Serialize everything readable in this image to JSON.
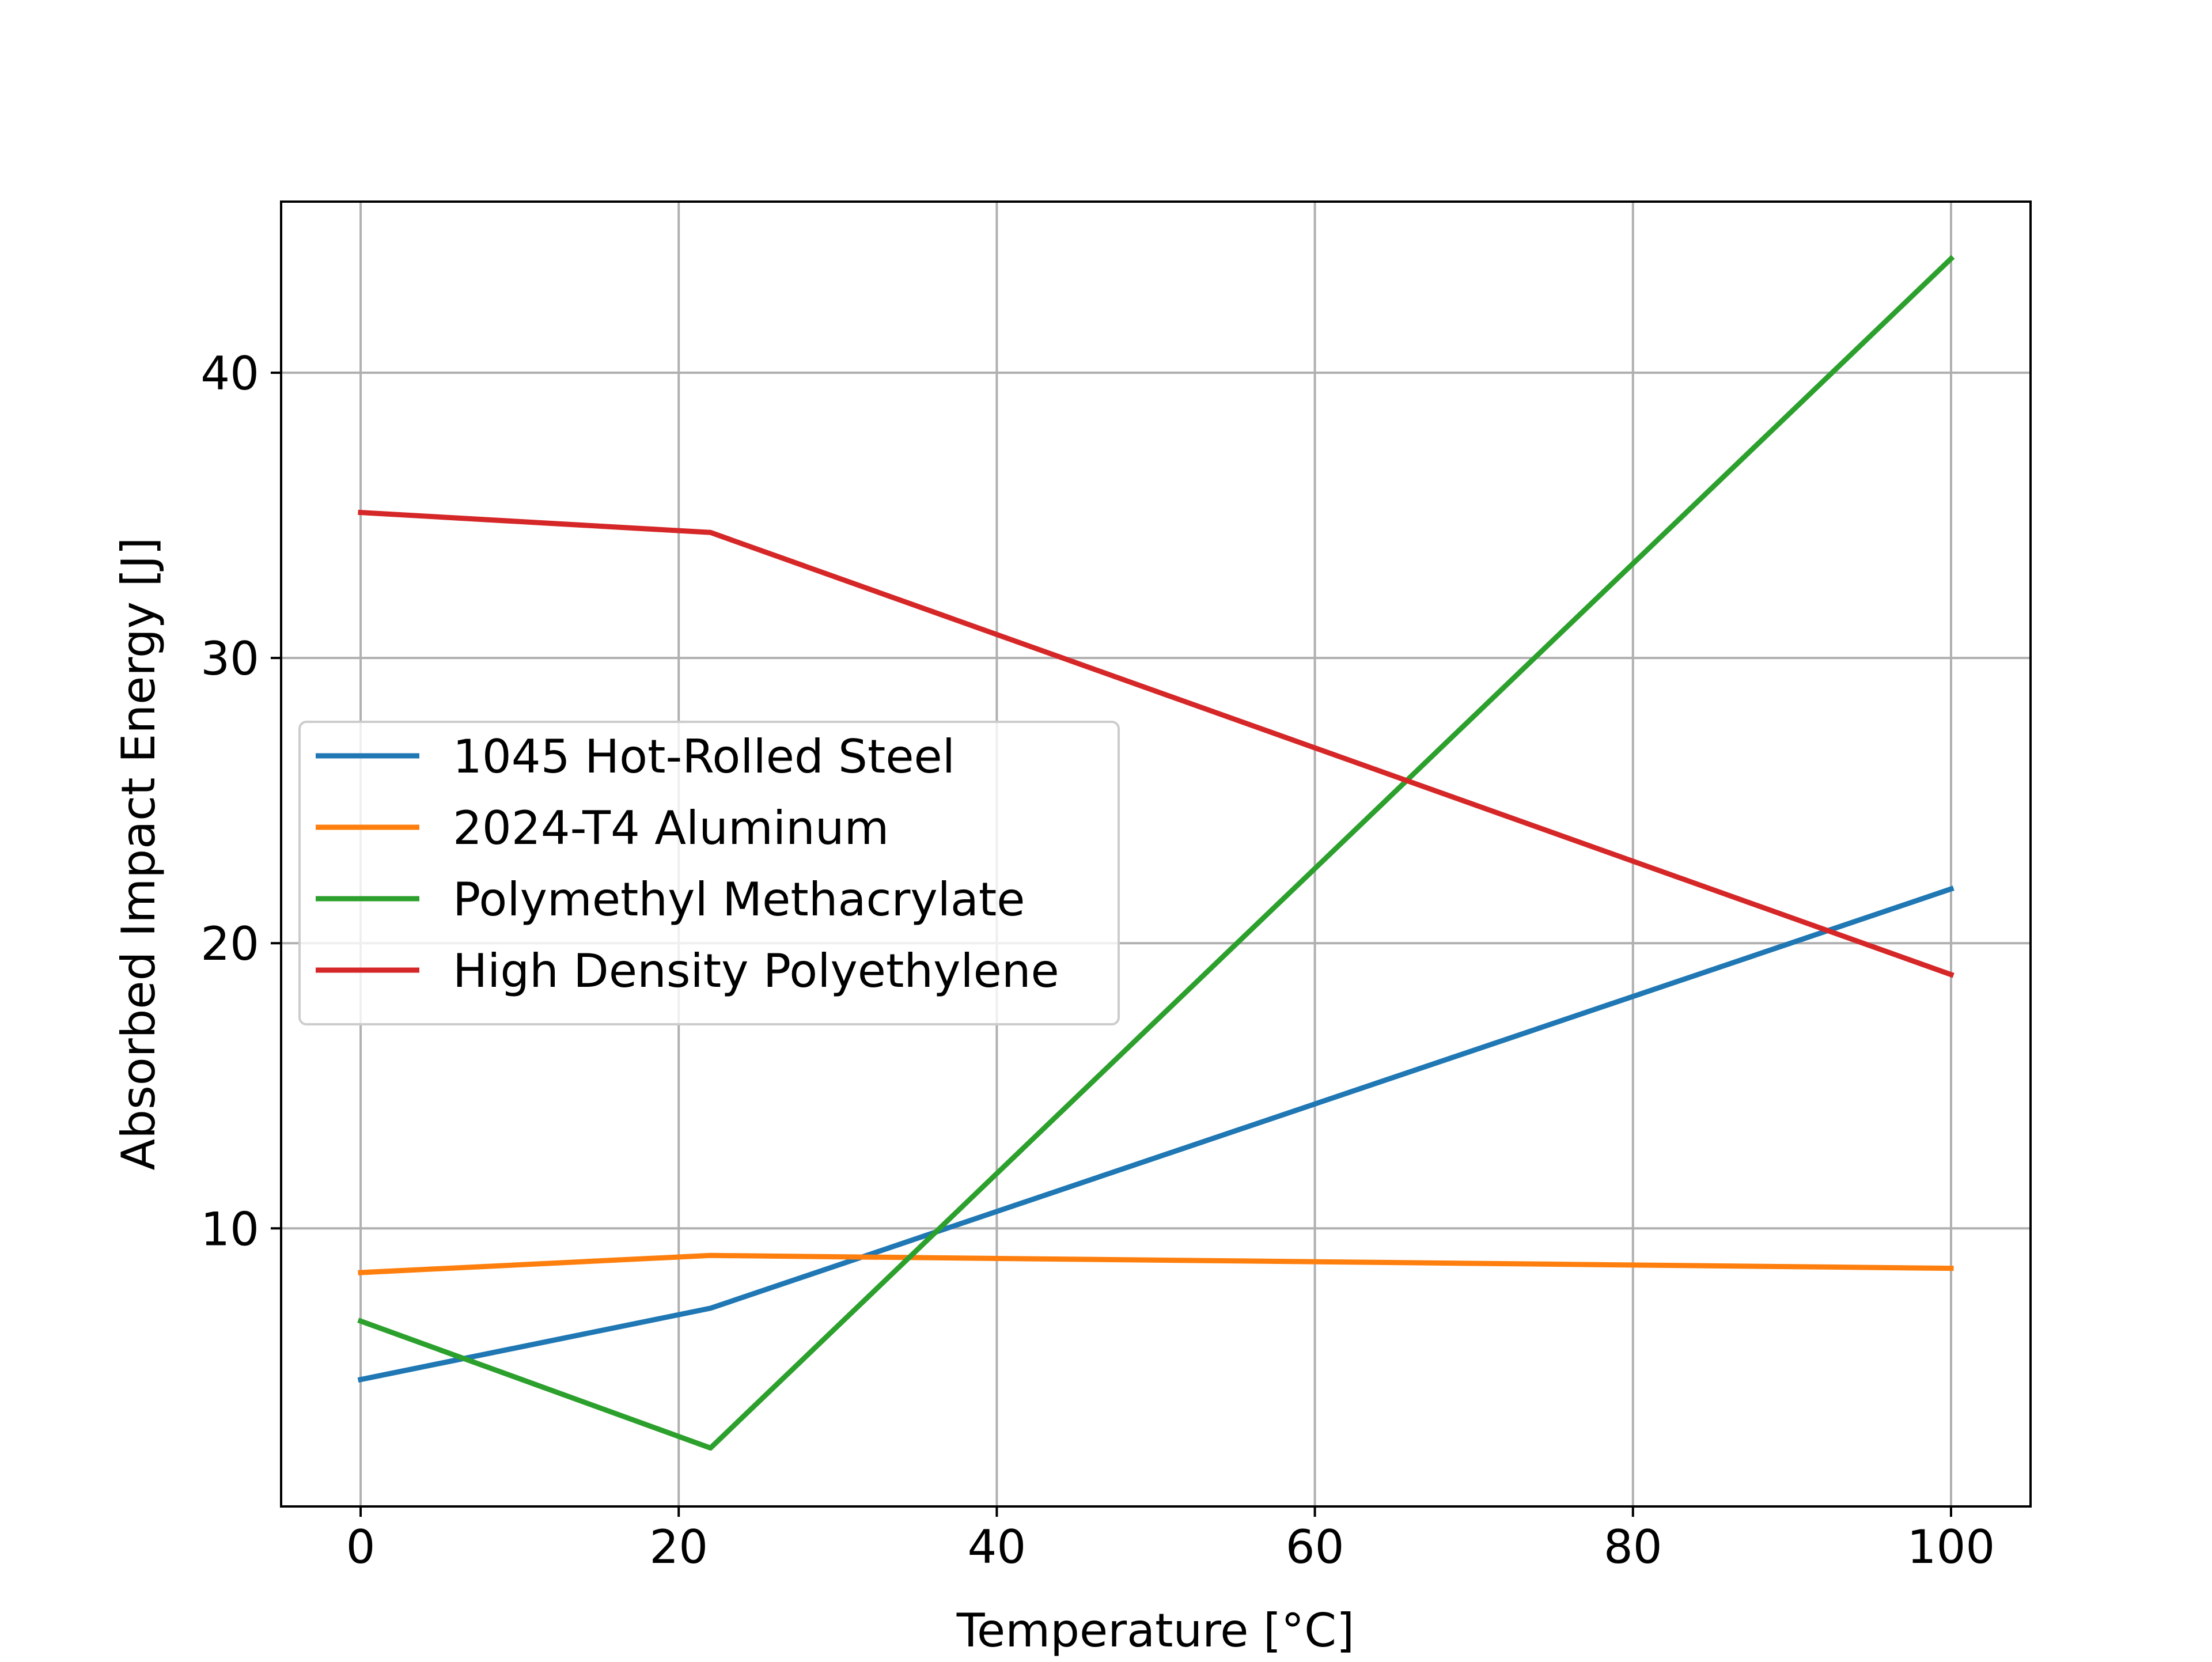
{
  "chart_data": {
    "type": "line",
    "title": "",
    "xlabel": "Temperature [°C]",
    "ylabel": "Absorbed Impact Energy [J]",
    "xlim": [
      -5,
      105
    ],
    "ylim": [
      0.25,
      46
    ],
    "xticks": [
      0,
      20,
      40,
      60,
      80,
      100
    ],
    "yticks": [
      10,
      20,
      30,
      40
    ],
    "grid": true,
    "legend_position": "center-left",
    "series": [
      {
        "name": "1045 Hot-Rolled Steel",
        "color": "#1f77b4",
        "x": [
          0,
          22,
          100
        ],
        "y": [
          4.7,
          7.2,
          21.9
        ]
      },
      {
        "name": "2024-T4 Aluminum",
        "color": "#ff7f0e",
        "x": [
          0,
          22,
          100
        ],
        "y": [
          8.45,
          9.05,
          8.6
        ]
      },
      {
        "name": "Polymethyl Methacrylate",
        "color": "#2ca02c",
        "x": [
          0,
          22,
          100
        ],
        "y": [
          6.75,
          2.3,
          44.0
        ]
      },
      {
        "name": "High Density Polyethylene",
        "color": "#d62728",
        "x": [
          0,
          22,
          100
        ],
        "y": [
          35.1,
          34.4,
          18.9
        ]
      }
    ]
  }
}
